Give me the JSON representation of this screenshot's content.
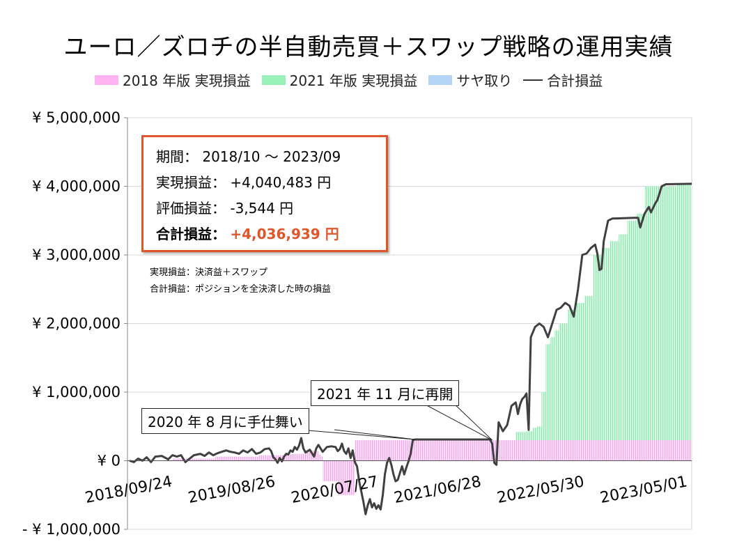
{
  "title": "ユーロ／ズロチの半自動売買＋スワップ戦略の運用実績",
  "legend": [
    {
      "label": "2018 年版 実現損益",
      "color": "#ffb3f0"
    },
    {
      "label": "2021 年版 実現損益",
      "color": "#99f0b8"
    },
    {
      "label": "サヤ取り",
      "color": "#b3d4f5"
    },
    {
      "label": "合計損益",
      "color": "#404040"
    }
  ],
  "info_box": {
    "period": "期間：  2018/10 ～ 2023/09",
    "realized": "実現損益：  +4,040,483 円",
    "unrealized": "評価損益：  -3,544 円",
    "total_label": "合計損益：",
    "total_value": "+4,036,939 円"
  },
  "notes": {
    "line1": "実現損益：決済益＋スワップ",
    "line2": "合計損益：ポジションを全決済した時の損益"
  },
  "annotations": {
    "pause": "2020 年 8 月に手仕舞い",
    "restart": "2021 年 11 月に再開"
  },
  "chart_data": {
    "type": "area",
    "ylim": [
      -1000000,
      5000000
    ],
    "yticks": [
      {
        "label": "¥ 5,000,000",
        "value": 5000000,
        "color": "#000000"
      },
      {
        "label": "¥ 4,000,000",
        "value": 4000000,
        "color": "#000000"
      },
      {
        "label": "¥ 3,000,000",
        "value": 3000000,
        "color": "#000000"
      },
      {
        "label": "¥ 2,000,000",
        "value": 2000000,
        "color": "#000000"
      },
      {
        "label": "¥ 1,000,000",
        "value": 1000000,
        "color": "#000000"
      },
      {
        "label": "¥ 0",
        "value": 0,
        "color": "#000000"
      },
      {
        "label": "- ¥ 1,000,000",
        "value": -1000000,
        "color": "#ff0000"
      }
    ],
    "x_categories": [
      "2018/09/24",
      "2019/08/26",
      "2020/07/27",
      "2021/06/28",
      "2022/05/30",
      "2023/05/01"
    ],
    "x_range_weeks": [
      0,
      262
    ],
    "x_tick_weeks": [
      0,
      48,
      96,
      144,
      192,
      240
    ],
    "series": [
      {
        "name": "2018 年版 実現損益",
        "type": "area",
        "color": "#ffb3f0",
        "points": [
          [
            0,
            0
          ],
          [
            20,
            30000
          ],
          [
            40,
            60000
          ],
          [
            60,
            80000
          ],
          [
            75,
            100000
          ],
          [
            80,
            100000
          ],
          [
            82,
            150000
          ],
          [
            86,
            140000
          ],
          [
            88,
            90000
          ],
          [
            89,
            60000
          ],
          [
            90,
            -300000
          ],
          [
            96,
            -300000
          ],
          [
            97,
            -500000
          ],
          [
            104,
            -500000
          ],
          [
            105,
            300000
          ],
          [
            262,
            300000
          ]
        ]
      },
      {
        "name": "2021 年版 実現損益",
        "type": "area",
        "color": "#99f0b8",
        "points": [
          [
            0,
            0
          ],
          [
            168,
            0
          ],
          [
            169,
            300000
          ],
          [
            178,
            300000
          ],
          [
            180,
            420000
          ],
          [
            185,
            430000
          ],
          [
            188,
            480000
          ],
          [
            190,
            500000
          ],
          [
            192,
            1000000
          ],
          [
            194,
            1700000
          ],
          [
            196,
            1800000
          ],
          [
            198,
            1900000
          ],
          [
            200,
            2000000
          ],
          [
            204,
            2200000
          ],
          [
            208,
            2300000
          ],
          [
            212,
            2400000
          ],
          [
            216,
            3000000
          ],
          [
            220,
            3100000
          ],
          [
            224,
            3200000
          ],
          [
            228,
            3300000
          ],
          [
            232,
            3500000
          ],
          [
            236,
            3600000
          ],
          [
            240,
            4000000
          ],
          [
            245,
            4000000
          ],
          [
            255,
            4020000
          ],
          [
            262,
            4040483
          ]
        ]
      },
      {
        "name": "合計損益",
        "type": "line",
        "color": "#404040",
        "points": [
          [
            0,
            0
          ],
          [
            2,
            -20000
          ],
          [
            4,
            30000
          ],
          [
            6,
            0
          ],
          [
            8,
            50000
          ],
          [
            10,
            -20000
          ],
          [
            12,
            60000
          ],
          [
            15,
            70000
          ],
          [
            18,
            20000
          ],
          [
            20,
            80000
          ],
          [
            22,
            60000
          ],
          [
            24,
            80000
          ],
          [
            26,
            -20000
          ],
          [
            28,
            30000
          ],
          [
            30,
            80000
          ],
          [
            33,
            100000
          ],
          [
            35,
            70000
          ],
          [
            37,
            120000
          ],
          [
            39,
            80000
          ],
          [
            41,
            110000
          ],
          [
            43,
            130000
          ],
          [
            45,
            150000
          ],
          [
            47,
            130000
          ],
          [
            49,
            120000
          ],
          [
            51,
            100000
          ],
          [
            53,
            150000
          ],
          [
            55,
            120000
          ],
          [
            57,
            170000
          ],
          [
            59,
            100000
          ],
          [
            61,
            120000
          ],
          [
            63,
            170000
          ],
          [
            65,
            180000
          ],
          [
            66,
            140000
          ],
          [
            67,
            50000
          ],
          [
            68,
            20000
          ],
          [
            69,
            -30000
          ],
          [
            70,
            40000
          ],
          [
            71,
            -10000
          ],
          [
            72,
            60000
          ],
          [
            73,
            100000
          ],
          [
            74,
            90000
          ],
          [
            75,
            150000
          ],
          [
            76,
            130000
          ],
          [
            77,
            200000
          ],
          [
            78,
            160000
          ],
          [
            79,
            220000
          ],
          [
            80,
            330000
          ],
          [
            81,
            180000
          ],
          [
            82,
            120000
          ],
          [
            84,
            160000
          ],
          [
            86,
            60000
          ],
          [
            87,
            180000
          ],
          [
            88,
            230000
          ],
          [
            90,
            130000
          ],
          [
            92,
            200000
          ],
          [
            94,
            210000
          ],
          [
            96,
            200000
          ],
          [
            97,
            140000
          ],
          [
            98,
            170000
          ],
          [
            99,
            250000
          ],
          [
            100,
            140000
          ],
          [
            101,
            100000
          ],
          [
            102,
            180000
          ],
          [
            103,
            40000
          ],
          [
            104,
            150000
          ],
          [
            105,
            -20000
          ],
          [
            106,
            -80000
          ],
          [
            107,
            -300000
          ],
          [
            108,
            -450000
          ],
          [
            109,
            -600000
          ],
          [
            110,
            -780000
          ],
          [
            111,
            -650000
          ],
          [
            112,
            -560000
          ],
          [
            113,
            -680000
          ],
          [
            114,
            -620000
          ],
          [
            115,
            -700000
          ],
          [
            116,
            -650000
          ],
          [
            117,
            -710000
          ],
          [
            118,
            -500000
          ],
          [
            119,
            -200000
          ],
          [
            120,
            -30000
          ],
          [
            121,
            40000
          ],
          [
            122,
            -60000
          ],
          [
            123,
            -200000
          ],
          [
            124,
            -300000
          ],
          [
            125,
            -280000
          ],
          [
            126,
            -180000
          ],
          [
            127,
            -80000
          ],
          [
            128,
            -200000
          ],
          [
            129,
            -100000
          ],
          [
            130,
            -10000
          ],
          [
            131,
            100000
          ],
          [
            132,
            300000
          ],
          [
            133,
            310000
          ],
          [
            168,
            310000
          ],
          [
            169,
            250000
          ],
          [
            170,
            -30000
          ],
          [
            171,
            -60000
          ],
          [
            172,
            560000
          ],
          [
            174,
            430000
          ],
          [
            176,
            520000
          ],
          [
            178,
            800000
          ],
          [
            180,
            850000
          ],
          [
            181,
            680000
          ],
          [
            182,
            820000
          ],
          [
            183,
            900000
          ],
          [
            184,
            930000
          ],
          [
            185,
            980000
          ],
          [
            186,
            450000
          ],
          [
            187,
            1800000
          ],
          [
            189,
            1950000
          ],
          [
            191,
            2000000
          ],
          [
            193,
            1950000
          ],
          [
            195,
            1800000
          ],
          [
            197,
            2000000
          ],
          [
            199,
            2200000
          ],
          [
            201,
            2230000
          ],
          [
            203,
            2300000
          ],
          [
            205,
            2260000
          ],
          [
            207,
            2100000
          ],
          [
            209,
            2500000
          ],
          [
            211,
            3000000
          ],
          [
            213,
            3020000
          ],
          [
            215,
            3100000
          ],
          [
            217,
            3150000
          ],
          [
            218,
            3020000
          ],
          [
            219,
            2780000
          ],
          [
            220,
            2800000
          ],
          [
            221,
            3200000
          ],
          [
            223,
            3500000
          ],
          [
            225,
            3530000
          ],
          [
            235,
            3540000
          ],
          [
            237,
            3540000
          ],
          [
            238,
            3400000
          ],
          [
            240,
            3600000
          ],
          [
            242,
            3700000
          ],
          [
            243,
            3620000
          ],
          [
            245,
            3750000
          ],
          [
            246,
            3800000
          ],
          [
            248,
            4000000
          ],
          [
            250,
            4030000
          ],
          [
            262,
            4036939
          ]
        ]
      }
    ]
  }
}
